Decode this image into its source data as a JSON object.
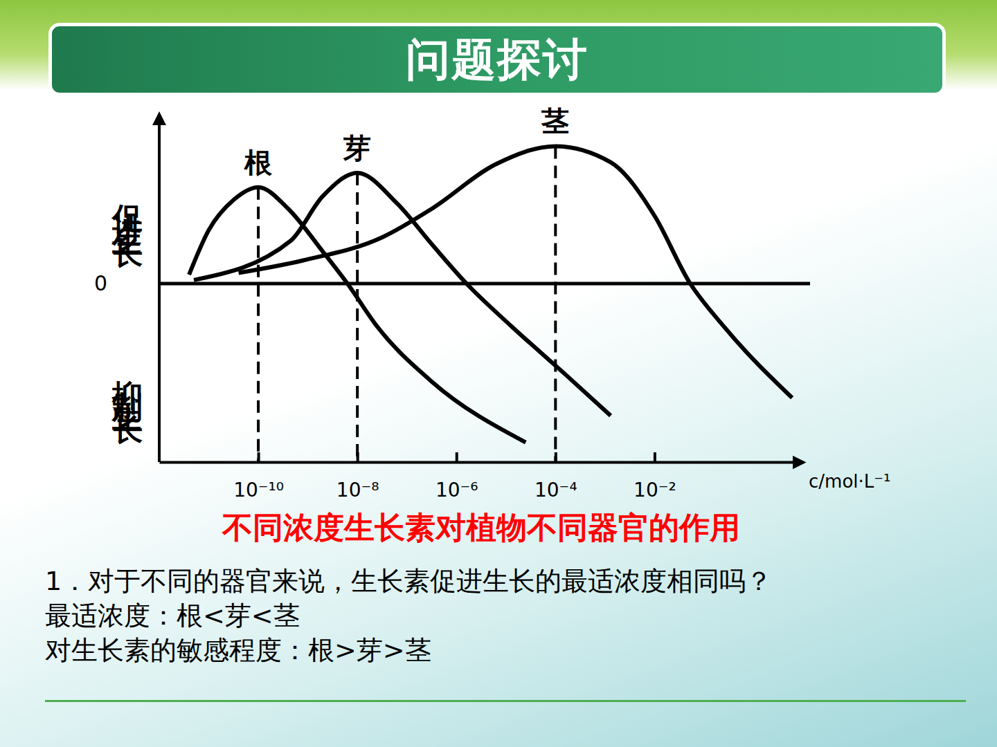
{
  "header": {
    "title": "问题探讨"
  },
  "chart_data": {
    "type": "line",
    "title": "不同浓度生长素对植物不同器官的作用",
    "xlabel": "c/mol·L⁻¹",
    "ylabel_positive": "促进生长",
    "ylabel_negative": "抑制生长",
    "log": "x",
    "xlim": [
      1e-12,
      10
    ],
    "xticks": [
      {
        "value": 1e-10,
        "label": "10⁻¹⁰"
      },
      {
        "value": 1e-08,
        "label": "10⁻⁸"
      },
      {
        "value": 1e-06,
        "label": "10⁻⁶"
      },
      {
        "value": 0.0001,
        "label": "10⁻⁴"
      },
      {
        "value": 0.01,
        "label": "10⁻²"
      }
    ],
    "ylim": [
      -10,
      9.5
    ],
    "yticks": [
      0
    ],
    "grid": true,
    "color": "#000000",
    "series": [
      {
        "name": "根",
        "x": [
          4e-12,
          1e-11,
          3.2e-11,
          1e-10,
          4e-10,
          2e-09,
          6.3e-09,
          2.5e-08,
          3.2e-07,
          2.5e-05
        ],
        "values": [
          0.5,
          3.0,
          4.7,
          5.4,
          4.2,
          1.8,
          0,
          -2.4,
          -5.5,
          -8.9
        ]
      },
      {
        "name": "芽",
        "x": [
          5e-12,
          4.5e-10,
          2e-09,
          1e-08,
          6.3e-08,
          3.2e-07,
          1.6e-06,
          1.3e-05,
          0.00016,
          0.0013
        ],
        "values": [
          0.2,
          2.4,
          4.9,
          6.2,
          4.5,
          2.2,
          0,
          -2.4,
          -5.1,
          -7.4
        ]
      },
      {
        "name": "茎",
        "x": [
          4e-11,
          8e-10,
          3.2e-08,
          3.2e-07,
          6.3e-06,
          0.0001,
          0.0013,
          0.01,
          0.05,
          0.25,
          6
        ],
        "values": [
          0.6,
          1.3,
          2.6,
          4.2,
          6.7,
          7.7,
          6.8,
          3.8,
          0.1,
          -2.4,
          -6.4
        ]
      }
    ]
  },
  "notes": [
    "1．对于不同的器官来说，生长素促进生长的最适浓度相同吗？",
    "最适浓度：根<芽<茎",
    "对生长素的敏感程度：根>芽>茎"
  ]
}
